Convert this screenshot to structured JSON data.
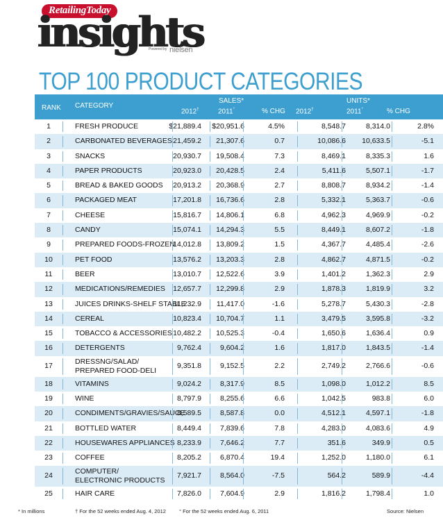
{
  "masthead": {
    "brand": "RetailingToday",
    "word": "insights",
    "powered_by": "Powered by",
    "partner": "nielsen"
  },
  "title": "TOP 100 PRODUCT CATEGORIES",
  "header": {
    "rank": "RANK",
    "category": "CATEGORY",
    "sales_group": "SALES*",
    "units_group": "UNITS*",
    "y2012": "2012",
    "y2011": "2011",
    "dagger": "†",
    "degree": "°",
    "pct_chg": "% CHG"
  },
  "rows": [
    {
      "rank": "1",
      "category": "FRESH PRODUCE",
      "sales_2012": "$21,889.4",
      "sales_2011": "$20,951.6",
      "sales_chg": "4.5%",
      "units_2012": "8,548.7",
      "units_2011": "8,314.0",
      "units_chg": "2.8%"
    },
    {
      "rank": "2",
      "category": "CARBONATED BEVERAGES",
      "sales_2012": "21,459.2",
      "sales_2011": "21,307.6",
      "sales_chg": "0.7",
      "units_2012": "10,086.6",
      "units_2011": "10,633.5",
      "units_chg": "-5.1"
    },
    {
      "rank": "3",
      "category": "SNACKS",
      "sales_2012": "20,930.7",
      "sales_2011": "19,508.4",
      "sales_chg": "7.3",
      "units_2012": "8,469.1",
      "units_2011": "8,335.3",
      "units_chg": "1.6"
    },
    {
      "rank": "4",
      "category": "PAPER PRODUCTS",
      "sales_2012": "20,923.0",
      "sales_2011": "20,428.5",
      "sales_chg": "2.4",
      "units_2012": "5,411.6",
      "units_2011": "5,507.1",
      "units_chg": "-1.7"
    },
    {
      "rank": "5",
      "category": "BREAD & BAKED GOODS",
      "sales_2012": "20,913.2",
      "sales_2011": "20,368.9",
      "sales_chg": "2.7",
      "units_2012": "8,808.7",
      "units_2011": "8,934.2",
      "units_chg": "-1.4"
    },
    {
      "rank": "6",
      "category": "PACKAGED MEAT",
      "sales_2012": "17,201.8",
      "sales_2011": "16,736.6",
      "sales_chg": "2.8",
      "units_2012": "5,332.1",
      "units_2011": "5,363.7",
      "units_chg": "-0.6"
    },
    {
      "rank": "7",
      "category": "CHEESE",
      "sales_2012": "15,816.7",
      "sales_2011": "14,806.1",
      "sales_chg": "6.8",
      "units_2012": "4,962.3",
      "units_2011": "4,969.9",
      "units_chg": "-0.2"
    },
    {
      "rank": "8",
      "category": "CANDY",
      "sales_2012": "15,074.1",
      "sales_2011": "14,294.3",
      "sales_chg": "5.5",
      "units_2012": "8,449.1",
      "units_2011": "8,607.2",
      "units_chg": "-1.8"
    },
    {
      "rank": "9",
      "category": "PREPARED FOODS-FROZEN",
      "sales_2012": "14,012.8",
      "sales_2011": "13,809.2",
      "sales_chg": "1.5",
      "units_2012": "4,367.7",
      "units_2011": "4,485.4",
      "units_chg": "-2.6"
    },
    {
      "rank": "10",
      "category": "PET FOOD",
      "sales_2012": "13,576.2",
      "sales_2011": "13,203.3",
      "sales_chg": "2.8",
      "units_2012": "4,862.7",
      "units_2011": "4,871.5",
      "units_chg": "-0.2"
    },
    {
      "rank": "11",
      "category": "BEER",
      "sales_2012": "13,010.7",
      "sales_2011": "12,522.6",
      "sales_chg": "3.9",
      "units_2012": "1,401.2",
      "units_2011": "1,362.3",
      "units_chg": "2.9"
    },
    {
      "rank": "12",
      "category": "MEDICATIONS/REMEDIES",
      "sales_2012": "12,657.7",
      "sales_2011": "12,299.8",
      "sales_chg": "2.9",
      "units_2012": "1,878.3",
      "units_2011": "1,819.9",
      "units_chg": "3.2"
    },
    {
      "rank": "13",
      "category": "JUICES DRINKS-SHELF STABLE",
      "sales_2012": "11,232.9",
      "sales_2011": "11,417.0",
      "sales_chg": "-1.6",
      "units_2012": "5,278.7",
      "units_2011": "5,430.3",
      "units_chg": "-2.8"
    },
    {
      "rank": "14",
      "category": "CEREAL",
      "sales_2012": "10,823.4",
      "sales_2011": "10,704.7",
      "sales_chg": "1.1",
      "units_2012": "3,479.5",
      "units_2011": "3,595.8",
      "units_chg": "-3.2"
    },
    {
      "rank": "15",
      "category": "TOBACCO & ACCESSORIES",
      "sales_2012": "10,482.2",
      "sales_2011": "10,525.3",
      "sales_chg": "-0.4",
      "units_2012": "1,650.6",
      "units_2011": "1,636.4",
      "units_chg": "0.9"
    },
    {
      "rank": "16",
      "category": "DETERGENTS",
      "sales_2012": "9,762.4",
      "sales_2011": "9,604.2",
      "sales_chg": "1.6",
      "units_2012": "1,817.0",
      "units_2011": "1,843.5",
      "units_chg": "-1.4"
    },
    {
      "rank": "17",
      "category": "DRESSNG/SALAD/",
      "category_line2": "PREPARED FOOD-DELI",
      "sales_2012": "9,351.8",
      "sales_2011": "9,152.5",
      "sales_chg": "2.2",
      "units_2012": "2,749.2",
      "units_2011": "2,766.6",
      "units_chg": "-0.6"
    },
    {
      "rank": "18",
      "category": "VITAMINS",
      "sales_2012": "9,024.2",
      "sales_2011": "8,317.9",
      "sales_chg": "8.5",
      "units_2012": "1,098.0",
      "units_2011": "1,012.2",
      "units_chg": "8.5"
    },
    {
      "rank": "19",
      "category": "WINE",
      "sales_2012": "8,797.9",
      "sales_2011": "8,255.6",
      "sales_chg": "6.6",
      "units_2012": "1,042.5",
      "units_2011": "983.8",
      "units_chg": "6.0"
    },
    {
      "rank": "20",
      "category": "CONDIMENTS/GRAVIES/SAUCE",
      "sales_2012": "8,589.5",
      "sales_2011": "8,587.8",
      "sales_chg": "0.0",
      "units_2012": "4,512.1",
      "units_2011": "4,597.1",
      "units_chg": "-1.8"
    },
    {
      "rank": "21",
      "category": "BOTTLED WATER",
      "sales_2012": "8,449.4",
      "sales_2011": "7,839.6",
      "sales_chg": "7.8",
      "units_2012": "4,283.0",
      "units_2011": "4,083.6",
      "units_chg": "4.9"
    },
    {
      "rank": "22",
      "category": "HOUSEWARES APPLIANCES",
      "sales_2012": "8,233.9",
      "sales_2011": "7,646.2",
      "sales_chg": "7.7",
      "units_2012": "351.6",
      "units_2011": "349.9",
      "units_chg": "0.5"
    },
    {
      "rank": "23",
      "category": "COFFEE",
      "sales_2012": "8,205.2",
      "sales_2011": "6,870.4",
      "sales_chg": "19.4",
      "units_2012": "1,252.0",
      "units_2011": "1,180.0",
      "units_chg": "6.1"
    },
    {
      "rank": "24",
      "category": "COMPUTER/",
      "category_line2": "ELECTRONIC PRODUCTS",
      "sales_2012": "7,921.7",
      "sales_2011": "8,564.0",
      "sales_chg": "-7.5",
      "units_2012": "564.2",
      "units_2011": "589.9",
      "units_chg": "-4.4"
    },
    {
      "rank": "25",
      "category": "HAIR CARE",
      "sales_2012": "7,826.0",
      "sales_2011": "7,604.9",
      "sales_chg": "2.9",
      "units_2012": "1,816.2",
      "units_2011": "1,798.4",
      "units_chg": "1.0"
    }
  ],
  "footer": {
    "millions": "* In millions",
    "note_2012": "† For the 52 weeks ended Aug. 4, 2012",
    "note_2011": "° For the 52 weeks ended Aug. 6, 2011",
    "source": "Source: Nielsen"
  },
  "colors": {
    "accent": "#3c9fcf",
    "row_alt": "#dcecf7",
    "brand_red": "#c8102e"
  }
}
